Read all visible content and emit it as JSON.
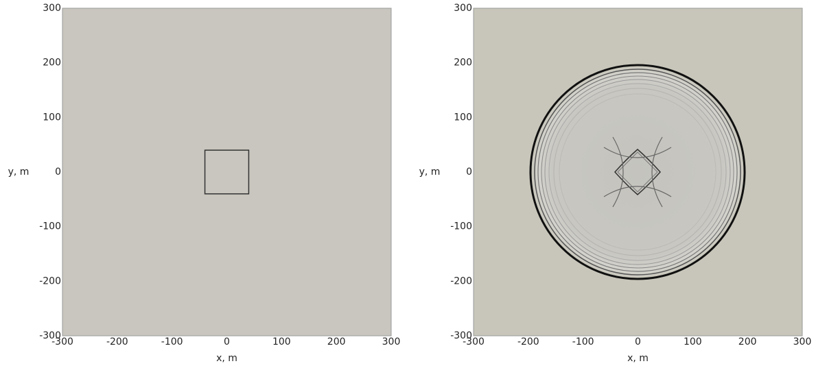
{
  "chart_data": [
    {
      "type": "image",
      "xlabel": "x, m",
      "ylabel": "y, m",
      "xlim": [
        -300,
        300
      ],
      "ylim": [
        -300,
        300
      ],
      "xticks": [
        -300,
        -200,
        -100,
        0,
        100,
        200,
        300
      ],
      "yticks": [
        -300,
        -200,
        -100,
        0,
        100,
        200,
        300
      ],
      "background": "#c8c6be",
      "rectangle": {
        "x": [
          -40,
          40
        ],
        "y": [
          -40,
          40
        ],
        "color": "#333333"
      }
    },
    {
      "type": "image",
      "xlabel": "x, m",
      "ylabel": "y, m",
      "xlim": [
        -300,
        300
      ],
      "ylim": [
        -300,
        300
      ],
      "xticks": [
        -300,
        -200,
        -100,
        0,
        100,
        200,
        300
      ],
      "yticks": [
        -300,
        -200,
        -100,
        0,
        100,
        200,
        300
      ],
      "background": "#c8c6ba"
    }
  ]
}
